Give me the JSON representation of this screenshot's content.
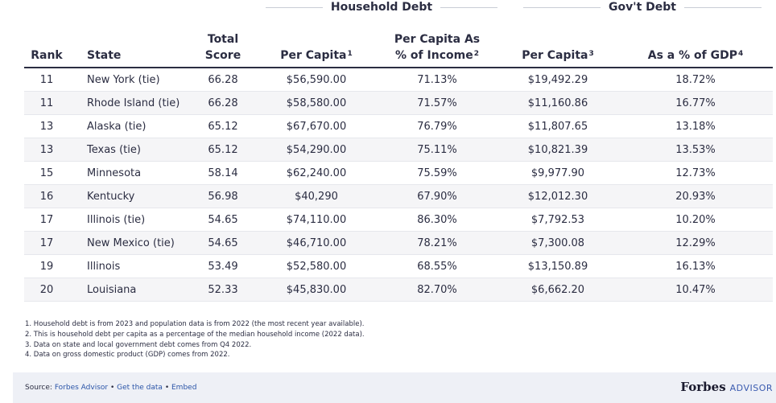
{
  "groups": {
    "household": "Household Debt",
    "govt": "Gov't Debt"
  },
  "headers": {
    "rank": "Rank",
    "state": "State",
    "total_line1": "Total",
    "total_line2": "Score",
    "hh_per_capita": "Per Capita",
    "hh_per_capita_sup": "1",
    "hh_income_line1": "Per Capita As",
    "hh_income_line2": "% of Income",
    "hh_income_sup": "2",
    "gov_per_capita": "Per Capita",
    "gov_per_capita_sup": "3",
    "gov_gdp": "As a % of GDP",
    "gov_gdp_sup": "4"
  },
  "rows": [
    {
      "rank": "11",
      "state": "New York (tie)",
      "score": "66.28",
      "hh_pc": "$56,590.00",
      "hh_inc": "71.13%",
      "gov_pc": "$19,492.29",
      "gov_gdp": "18.72%"
    },
    {
      "rank": "11",
      "state": "Rhode Island (tie)",
      "score": "66.28",
      "hh_pc": "$58,580.00",
      "hh_inc": "71.57%",
      "gov_pc": "$11,160.86",
      "gov_gdp": "16.77%"
    },
    {
      "rank": "13",
      "state": "Alaska (tie)",
      "score": "65.12",
      "hh_pc": "$67,670.00",
      "hh_inc": "76.79%",
      "gov_pc": "$11,807.65",
      "gov_gdp": "13.18%"
    },
    {
      "rank": "13",
      "state": "Texas (tie)",
      "score": "65.12",
      "hh_pc": "$54,290.00",
      "hh_inc": "75.11%",
      "gov_pc": "$10,821.39",
      "gov_gdp": "13.53%"
    },
    {
      "rank": "15",
      "state": "Minnesota",
      "score": "58.14",
      "hh_pc": "$62,240.00",
      "hh_inc": "75.59%",
      "gov_pc": "$9,977.90",
      "gov_gdp": "12.73%"
    },
    {
      "rank": "16",
      "state": "Kentucky",
      "score": "56.98",
      "hh_pc": "$40,290",
      "hh_inc": "67.90%",
      "gov_pc": "$12,012.30",
      "gov_gdp": "20.93%"
    },
    {
      "rank": "17",
      "state": "Illinois (tie)",
      "score": "54.65",
      "hh_pc": "$74,110.00",
      "hh_inc": "86.30%",
      "gov_pc": "$7,792.53",
      "gov_gdp": "10.20%"
    },
    {
      "rank": "17",
      "state": "New Mexico (tie)",
      "score": "54.65",
      "hh_pc": "$46,710.00",
      "hh_inc": "78.21%",
      "gov_pc": "$7,300.08",
      "gov_gdp": "12.29%"
    },
    {
      "rank": "19",
      "state": "Illinois",
      "score": "53.49",
      "hh_pc": "$52,580.00",
      "hh_inc": "68.55%",
      "gov_pc": "$13,150.89",
      "gov_gdp": "16.13%"
    },
    {
      "rank": "20",
      "state": "Louisiana",
      "score": "52.33",
      "hh_pc": "$45,830.00",
      "hh_inc": "82.70%",
      "gov_pc": "$6,662.20",
      "gov_gdp": "10.47%"
    }
  ],
  "notes": [
    "1. Household debt is from 2023 and population data is from 2022 (the most recent year available).",
    "2. This is household debt per capita as a percentage of the median household income (2022 data).",
    "3. Data on state and local government debt comes from Q4 2022.",
    "4. Data on gross domestic product (GDP) comes from 2022."
  ],
  "footer": {
    "source_prefix": "Source: ",
    "source_link": "Forbes Advisor",
    "sep": " • ",
    "get_data": "Get the data",
    "embed": "Embed",
    "brand": "Forbes",
    "brand_suffix": "ADVISOR"
  }
}
